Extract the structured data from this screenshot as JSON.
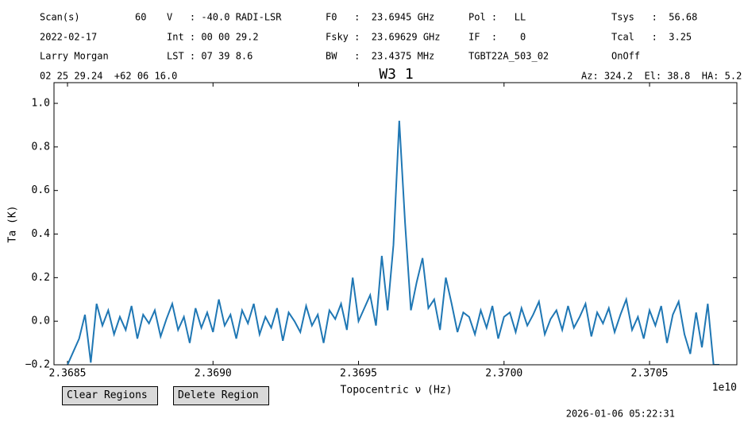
{
  "header": {
    "rows": [
      [
        "Scan(s)",
        "60",
        "V   : -40.0 RADI-LSR",
        "F0   :  23.6945 GHz",
        "Pol :   LL",
        "Tsys   :  56.68"
      ],
      [
        "2022-02-17",
        "Int : 00 00 29.2",
        "Fsky :  23.69629 GHz",
        "IF  :    0",
        "Tcal   :  3.25"
      ],
      [
        "Larry Morgan",
        "LST : 07 39 8.6",
        "BW   :  23.4375 MHz",
        "TGBT22A_503_02",
        "OnOff"
      ]
    ],
    "coords": "02 25 29.24  +62 06 16.0",
    "pointing": "Az: 324.2  El: 38.8  HA: 5.2"
  },
  "buttons": [
    "Clear Regions",
    "Delete Region"
  ],
  "timestamp": "2026-01-06 05:22:31",
  "chart_data": {
    "type": "line",
    "title": "W3 1",
    "xlabel": "Topocentric ν (Hz)",
    "ylabel": "Ta (K)",
    "x_offset_label": "1e10",
    "xlim": [
      23684536000,
      23708000000
    ],
    "ylim": [
      -0.2,
      1.095
    ],
    "xticks": [
      {
        "value": 23685000000,
        "label": "2.3685"
      },
      {
        "value": 23690000000,
        "label": "2.3690"
      },
      {
        "value": 23695000000,
        "label": "2.3695"
      },
      {
        "value": 23700000000,
        "label": "2.3700"
      },
      {
        "value": 23705000000,
        "label": "2.3705"
      }
    ],
    "yticks": [
      {
        "value": -0.2,
        "label": "−0.2"
      },
      {
        "value": 0,
        "label": "0.0"
      },
      0.2,
      0.4,
      0.6,
      0.8,
      {
        "value": 1,
        "label": "1.0"
      }
    ],
    "x": [
      23685000000,
      23685200000,
      23685400000,
      23685600000,
      23685800000,
      23686000000,
      23686200000,
      23686400000,
      23686600000,
      23686800000,
      23687000000,
      23687200000,
      23687400000,
      23687600000,
      23687800000,
      23688000000,
      23688200000,
      23688400000,
      23688600000,
      23688800000,
      23689000000,
      23689200000,
      23689400000,
      23689600000,
      23689800000,
      23690000000,
      23690200000,
      23690400000,
      23690600000,
      23690800000,
      23691000000,
      23691200000,
      23691400000,
      23691600000,
      23691800000,
      23692000000,
      23692200000,
      23692400000,
      23692600000,
      23692800000,
      23693000000,
      23693200000,
      23693400000,
      23693600000,
      23693800000,
      23694000000,
      23694200000,
      23694400000,
      23694600000,
      23694800000,
      23695000000,
      23695200000,
      23695400000,
      23695600000,
      23695800000,
      23696000000,
      23696200000,
      23696400000,
      23696600000,
      23696800000,
      23697000000,
      23697200000,
      23697400000,
      23697600000,
      23697800000,
      23698000000,
      23698200000,
      23698400000,
      23698600000,
      23698800000,
      23699000000,
      23699200000,
      23699400000,
      23699600000,
      23699800000,
      23700000000,
      23700200000,
      23700400000,
      23700600000,
      23700800000,
      23701000000,
      23701200000,
      23701400000,
      23701600000,
      23701800000,
      23702000000,
      23702200000,
      23702400000,
      23702600000,
      23702800000,
      23703000000,
      23703200000,
      23703400000,
      23703600000,
      23703800000,
      23704000000,
      23704200000,
      23704400000,
      23704600000,
      23704800000,
      23705000000,
      23705200000,
      23705400000,
      23705600000,
      23705800000,
      23706000000,
      23706200000,
      23706400000,
      23706600000,
      23706800000,
      23707000000,
      23707200000,
      23707400000
    ],
    "series": [
      {
        "color": "#1f77b4",
        "values": [
          -0.2,
          -0.14,
          -0.08,
          0.03,
          -0.19,
          0.08,
          -0.02,
          0.05,
          -0.06,
          0.02,
          -0.04,
          0.07,
          -0.08,
          0.03,
          -0.01,
          0.05,
          -0.07,
          0.01,
          0.08,
          -0.04,
          0.02,
          -0.1,
          0.06,
          -0.03,
          0.04,
          -0.05,
          0.1,
          -0.02,
          0.03,
          -0.08,
          0.05,
          -0.01,
          0.08,
          -0.06,
          0.02,
          -0.03,
          0.06,
          -0.09,
          0.04,
          0.0,
          -0.05,
          0.07,
          -0.02,
          0.03,
          -0.1,
          0.05,
          0.01,
          0.08,
          -0.04,
          0.2,
          0.0,
          0.06,
          0.12,
          -0.02,
          0.3,
          0.05,
          0.35,
          0.92,
          0.45,
          0.05,
          0.18,
          0.29,
          0.06,
          0.1,
          -0.04,
          0.2,
          0.08,
          -0.05,
          0.04,
          0.02,
          -0.06,
          0.05,
          -0.03,
          0.07,
          -0.08,
          0.02,
          0.04,
          -0.05,
          0.06,
          -0.02,
          0.03,
          0.09,
          -0.06,
          0.01,
          0.05,
          -0.04,
          0.07,
          -0.03,
          0.02,
          0.08,
          -0.07,
          0.04,
          -0.01,
          0.06,
          -0.05,
          0.03,
          0.1,
          -0.04,
          0.02,
          -0.08,
          0.05,
          -0.02,
          0.07,
          -0.1,
          0.03,
          0.09,
          -0.06,
          -0.15,
          0.04,
          -0.12,
          0.08,
          -0.2,
          -0.2
        ]
      }
    ]
  }
}
